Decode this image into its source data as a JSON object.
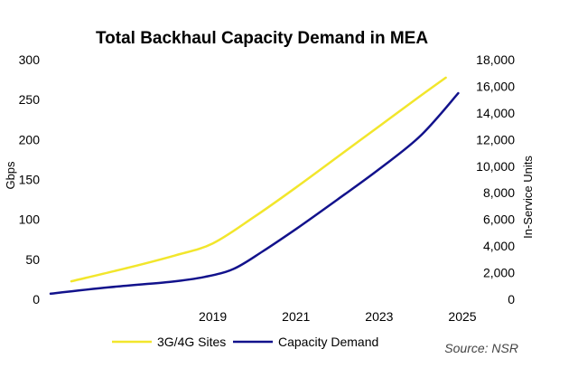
{
  "chart_data": {
    "type": "line",
    "title": "Total Backhaul Capacity Demand in MEA",
    "x_tick_labels": [
      "2019",
      "2021",
      "2023",
      "2025"
    ],
    "x_ticks": [
      2019,
      2021,
      2023,
      2025
    ],
    "xlim": [
      2015.1,
      2025
    ],
    "ylabel": "Gbps",
    "ylim": [
      0,
      300
    ],
    "y_tick_labels": [
      "0",
      "50",
      "100",
      "150",
      "200",
      "250",
      "300"
    ],
    "y_ticks": [
      0,
      50,
      100,
      150,
      200,
      250,
      300
    ],
    "y2label": "In-Service Units",
    "y2lim": [
      0,
      18000
    ],
    "y2_tick_labels": [
      "0",
      "2,000",
      "4,000",
      "6,000",
      "8,000",
      "10,000",
      "12,000",
      "14,000",
      "16,000",
      "18,000"
    ],
    "y2_ticks": [
      0,
      2000,
      4000,
      6000,
      8000,
      10000,
      12000,
      14000,
      16000,
      18000
    ],
    "series": [
      {
        "name": "3G/4G Sites",
        "axis": "right",
        "color": "#f2e62c",
        "x": [
          2015.6,
          2017.0,
          2018.1,
          2019.0,
          2020.0,
          2021.0,
          2022.0,
          2023.0,
          2024.0,
          2024.6
        ],
        "values": [
          1350,
          2400,
          3300,
          4200,
          6200,
          8400,
          10700,
          13000,
          15300,
          16650
        ]
      },
      {
        "name": "Capacity Demand",
        "axis": "left",
        "color": "#12128c",
        "x": [
          2015.1,
          2016.5,
          2018.0,
          2018.8,
          2019.5,
          2020.2,
          2021.0,
          2022.0,
          2023.0,
          2024.0,
          2024.9
        ],
        "values": [
          7,
          15,
          22,
          28,
          38,
          60,
          88,
          125,
          163,
          205,
          258
        ]
      }
    ],
    "legend_position": "bottom",
    "source": "Source: NSR"
  }
}
